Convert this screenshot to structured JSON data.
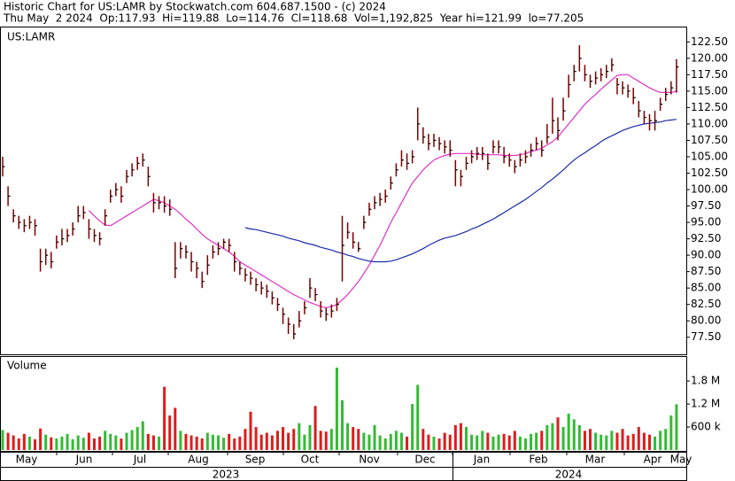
{
  "chart_data": {
    "type": "stock",
    "title": "Historic Chart for US:LAMR by Stockwatch.com 604.687.1500 - (c) 2024",
    "subtitle": "Thu May  2 2024  Op:117.93  Hi=119.88  Lo=114.76  Cl=118.68  Vol=1,192,825  Year hi=121.99  lo=77.205",
    "symbol": "US:LAMR",
    "color": "#7a0000",
    "ylim": [
      74.9,
      124.7
    ],
    "yticks": [
      {
        "value": 77.5,
        "label": "77.50"
      },
      {
        "value": 80,
        "label": "80.00"
      },
      {
        "value": 82.5,
        "label": "82.50"
      },
      {
        "value": 85,
        "label": "85.00"
      },
      {
        "value": 87.5,
        "label": "87.50"
      },
      {
        "value": 90,
        "label": "90.00"
      },
      {
        "value": 92.5,
        "label": "92.50"
      },
      {
        "value": 95,
        "label": "95.00"
      },
      {
        "value": 97.5,
        "label": "97.50"
      },
      {
        "value": 100,
        "label": "100.00"
      },
      {
        "value": 102.5,
        "label": "102.50"
      },
      {
        "value": 105,
        "label": "105.00"
      },
      {
        "value": 107.5,
        "label": "107.50"
      },
      {
        "value": 110,
        "label": "110.00"
      },
      {
        "value": 112.5,
        "label": "112.50"
      },
      {
        "value": 115,
        "label": "115.00"
      },
      {
        "value": 117.5,
        "label": "117.50"
      },
      {
        "value": 120,
        "label": "120.00"
      },
      {
        "value": 122.5,
        "label": "122.50"
      }
    ],
    "high": [
      105,
      100.5,
      97,
      96,
      95.5,
      96,
      95.5,
      91,
      91,
      90.5,
      93,
      94,
      94,
      95,
      97.5,
      97.5,
      95.5,
      94,
      93.5,
      97,
      100,
      101,
      100.5,
      103,
      104,
      105,
      105.5,
      103.5,
      99.5,
      99,
      99,
      98.5,
      92,
      92,
      91.5,
      90.5,
      89,
      87.5,
      90,
      91.5,
      92,
      92.5,
      92.5,
      90.5,
      89,
      88,
      87.5,
      86.5,
      86,
      85.5,
      84.5,
      83.5,
      82,
      80.5,
      79.5,
      81.5,
      83,
      86.5,
      85,
      83,
      82,
      82.5,
      83.5,
      96,
      95,
      93.5,
      92,
      96,
      98,
      99,
      99.5,
      100,
      102,
      104,
      106,
      105.5,
      106,
      112.5,
      109.5,
      108.5,
      108.5,
      108,
      107.5,
      107.5,
      104.5,
      103,
      105,
      106,
      106.5,
      106.5,
      105.5,
      107.5,
      107.5,
      106.5,
      105.5,
      104.5,
      105.5,
      106,
      107,
      108,
      107.5,
      110,
      114,
      111,
      114,
      117.5,
      119,
      121.99,
      119,
      117.5,
      118,
      118.5,
      119,
      120,
      117,
      116.5,
      116,
      115.5,
      113.5,
      112,
      111.5,
      112,
      114,
      115.5,
      116.5,
      119.88
    ],
    "low": [
      102,
      97.5,
      95,
      94,
      93.5,
      94,
      93,
      87.5,
      88.5,
      88,
      91,
      91.5,
      92,
      93,
      95,
      95.5,
      92.5,
      92,
      91.5,
      94.5,
      98,
      99,
      98,
      101,
      102,
      103,
      103.5,
      100.5,
      96.5,
      97,
      96.5,
      96,
      86.5,
      89.5,
      89.5,
      87.5,
      86.5,
      85,
      87,
      89.5,
      90,
      91,
      90.5,
      87.5,
      87,
      86,
      85.5,
      84.5,
      84,
      83.5,
      82.5,
      81.5,
      79.5,
      78,
      77.205,
      79,
      81,
      83.5,
      83,
      80.5,
      80,
      80.5,
      81.5,
      86,
      92.5,
      91,
      90.5,
      94,
      96,
      97,
      97.5,
      98,
      100,
      102,
      103.5,
      103,
      104,
      107.5,
      107,
      106,
      106.5,
      106,
      105.5,
      105,
      100.5,
      100.5,
      103,
      104,
      104.5,
      104.5,
      103,
      105.5,
      105.5,
      104,
      103.5,
      102.5,
      103.5,
      104,
      105,
      106,
      105,
      107,
      108.5,
      107.5,
      110.5,
      114,
      116.5,
      118,
      116.5,
      115.5,
      116,
      116.5,
      117,
      118,
      114.5,
      114.5,
      114,
      113,
      111,
      110,
      109,
      109,
      112,
      113.5,
      114.5,
      114.76
    ],
    "close": [
      103.5,
      99,
      96,
      95,
      94.5,
      95,
      94.5,
      89,
      90,
      89,
      92,
      92.5,
      93,
      94,
      96,
      96.5,
      94,
      93,
      92.5,
      96,
      99,
      100,
      99,
      102,
      103,
      104,
      104.5,
      102,
      98,
      98,
      97.5,
      97,
      88,
      91,
      90.5,
      89,
      88,
      86,
      88.5,
      90.5,
      91,
      92,
      91.5,
      89,
      88,
      87,
      86.5,
      85.5,
      85,
      84.5,
      83.5,
      82.5,
      81,
      79.5,
      78,
      80,
      82,
      85,
      84,
      81.5,
      81,
      81.5,
      82.5,
      91.5,
      93.5,
      92,
      91,
      95,
      97,
      98,
      98.5,
      99,
      101,
      103,
      104.5,
      104,
      105,
      110,
      108,
      107,
      107.5,
      107,
      106.5,
      106,
      103,
      102,
      104,
      105,
      105.5,
      105.5,
      104,
      106.5,
      106.5,
      105,
      104.5,
      103.5,
      104.5,
      105,
      106,
      107,
      106,
      108,
      110.5,
      109,
      112,
      116,
      118,
      120,
      117.5,
      116.5,
      117,
      117.5,
      118,
      119,
      116,
      115.5,
      115,
      114,
      112,
      111,
      110.5,
      110.5,
      113,
      114.5,
      115.5,
      118.68
    ],
    "series": [
      {
        "color": "#e030c8",
        "values": [
          null,
          null,
          null,
          null,
          null,
          null,
          null,
          null,
          null,
          null,
          null,
          null,
          null,
          null,
          null,
          null,
          96.8,
          96,
          95.2,
          94.6,
          94.5,
          95,
          95.5,
          96,
          96.5,
          97,
          97.5,
          98,
          98.5,
          98.3,
          98,
          97.5,
          97,
          96.3,
          95.5,
          94.8,
          94,
          93.2,
          92.5,
          92,
          91.5,
          91,
          90.5,
          89.8,
          89,
          88.5,
          88,
          87.5,
          87,
          86.5,
          86,
          85.5,
          85,
          84.5,
          84,
          83.6,
          83.2,
          82.8,
          82.5,
          82.2,
          82,
          82.2,
          82.5,
          83.2,
          84,
          85,
          86,
          87.2,
          88.5,
          90,
          91.5,
          93.2,
          95,
          96.5,
          98,
          99.5,
          101,
          102,
          103,
          103.8,
          104.5,
          104.9,
          105.2,
          105.4,
          105.5,
          105.5,
          105.5,
          105.5,
          105.4,
          105.3,
          105.3,
          105.3,
          105.3,
          105.2,
          105.2,
          105.2,
          105.3,
          105.5,
          105.8,
          106,
          106.3,
          106.8,
          107.3,
          108,
          109,
          110,
          111,
          112,
          113,
          113.8,
          114.5,
          115.3,
          116,
          116.7,
          117.4,
          117.5,
          117.5,
          117,
          116.5,
          116,
          115.5,
          115.1,
          114.8,
          114.8,
          114.8,
          115
        ]
      },
      {
        "color": "#1a2aa8",
        "values": [
          null,
          null,
          null,
          null,
          null,
          null,
          null,
          null,
          null,
          null,
          null,
          null,
          null,
          null,
          null,
          null,
          null,
          null,
          null,
          null,
          null,
          null,
          null,
          null,
          null,
          null,
          null,
          null,
          null,
          null,
          null,
          null,
          null,
          null,
          null,
          null,
          null,
          null,
          null,
          null,
          null,
          null,
          null,
          null,
          null,
          94.2,
          94,
          93.9,
          93.7,
          93.5,
          93.3,
          93.1,
          92.9,
          92.6,
          92.4,
          92.2,
          91.9,
          91.7,
          91.5,
          91.2,
          91,
          90.8,
          90.5,
          90.3,
          90,
          89.8,
          89.5,
          89.3,
          89.1,
          89,
          89,
          89,
          89.1,
          89.3,
          89.6,
          89.9,
          90.2,
          90.6,
          91,
          91.5,
          91.9,
          92.3,
          92.6,
          92.8,
          93,
          93.3,
          93.6,
          94,
          94.3,
          94.7,
          95.1,
          95.5,
          96,
          96.5,
          97,
          97.5,
          98,
          98.5,
          99.1,
          99.7,
          100.3,
          101,
          101.6,
          102.3,
          103,
          103.8,
          104.5,
          105.1,
          105.6,
          106.2,
          106.7,
          107.3,
          107.8,
          108.2,
          108.6,
          109,
          109.3,
          109.6,
          109.8,
          110,
          110.1,
          110.2,
          110.3,
          110.5,
          110.6,
          110.7
        ]
      }
    ],
    "volume": {
      "label": "Volume",
      "up_color": "#33bb33",
      "down_color": "#dd1c1c",
      "ylim": [
        0,
        2450000
      ],
      "yticks": [
        {
          "value": 600000,
          "label": "600 k"
        },
        {
          "value": 1200000,
          "label": "1.2 M"
        },
        {
          "value": 1800000,
          "label": "1.8 M"
        }
      ],
      "values": [
        520000,
        450000,
        380000,
        300000,
        420000,
        350000,
        280000,
        560000,
        400000,
        330000,
        300000,
        350000,
        420000,
        280000,
        380000,
        320000,
        450000,
        300000,
        350000,
        500000,
        420000,
        380000,
        300000,
        450000,
        520000,
        600000,
        750000,
        420000,
        380000,
        350000,
        1650000,
        900000,
        1100000,
        500000,
        420000,
        380000,
        350000,
        300000,
        450000,
        400000,
        380000,
        320000,
        420000,
        300000,
        350000,
        550000,
        1000000,
        600000,
        400000,
        450000,
        380000,
        500000,
        600000,
        450000,
        550000,
        700000,
        400000,
        650000,
        1150000,
        500000,
        480000,
        550000,
        2150000,
        1300000,
        700000,
        600000,
        550000,
        450000,
        400000,
        650000,
        380000,
        300000,
        420000,
        500000,
        450000,
        350000,
        1200000,
        1700000,
        550000,
        400000,
        350000,
        300000,
        450000,
        400000,
        650000,
        700000,
        600000,
        400000,
        380000,
        500000,
        450000,
        350000,
        400000,
        420000,
        380000,
        500000,
        350000,
        300000,
        420000,
        450000,
        500000,
        650000,
        700000,
        850000,
        600000,
        950000,
        800000,
        650000,
        500000,
        550000,
        450000,
        400000,
        380000,
        500000,
        450000,
        550000,
        380000,
        420000,
        600000,
        450000,
        400000,
        350000,
        500000,
        550000,
        900000,
        1192825
      ]
    },
    "months": [
      "May",
      "Jun",
      "Jul",
      "Aug",
      "Sep",
      "Oct",
      "Nov",
      "Dec",
      "Jan",
      "Feb",
      "Mar",
      "Apr",
      "May"
    ],
    "years": [
      "2023",
      "2024"
    ]
  }
}
